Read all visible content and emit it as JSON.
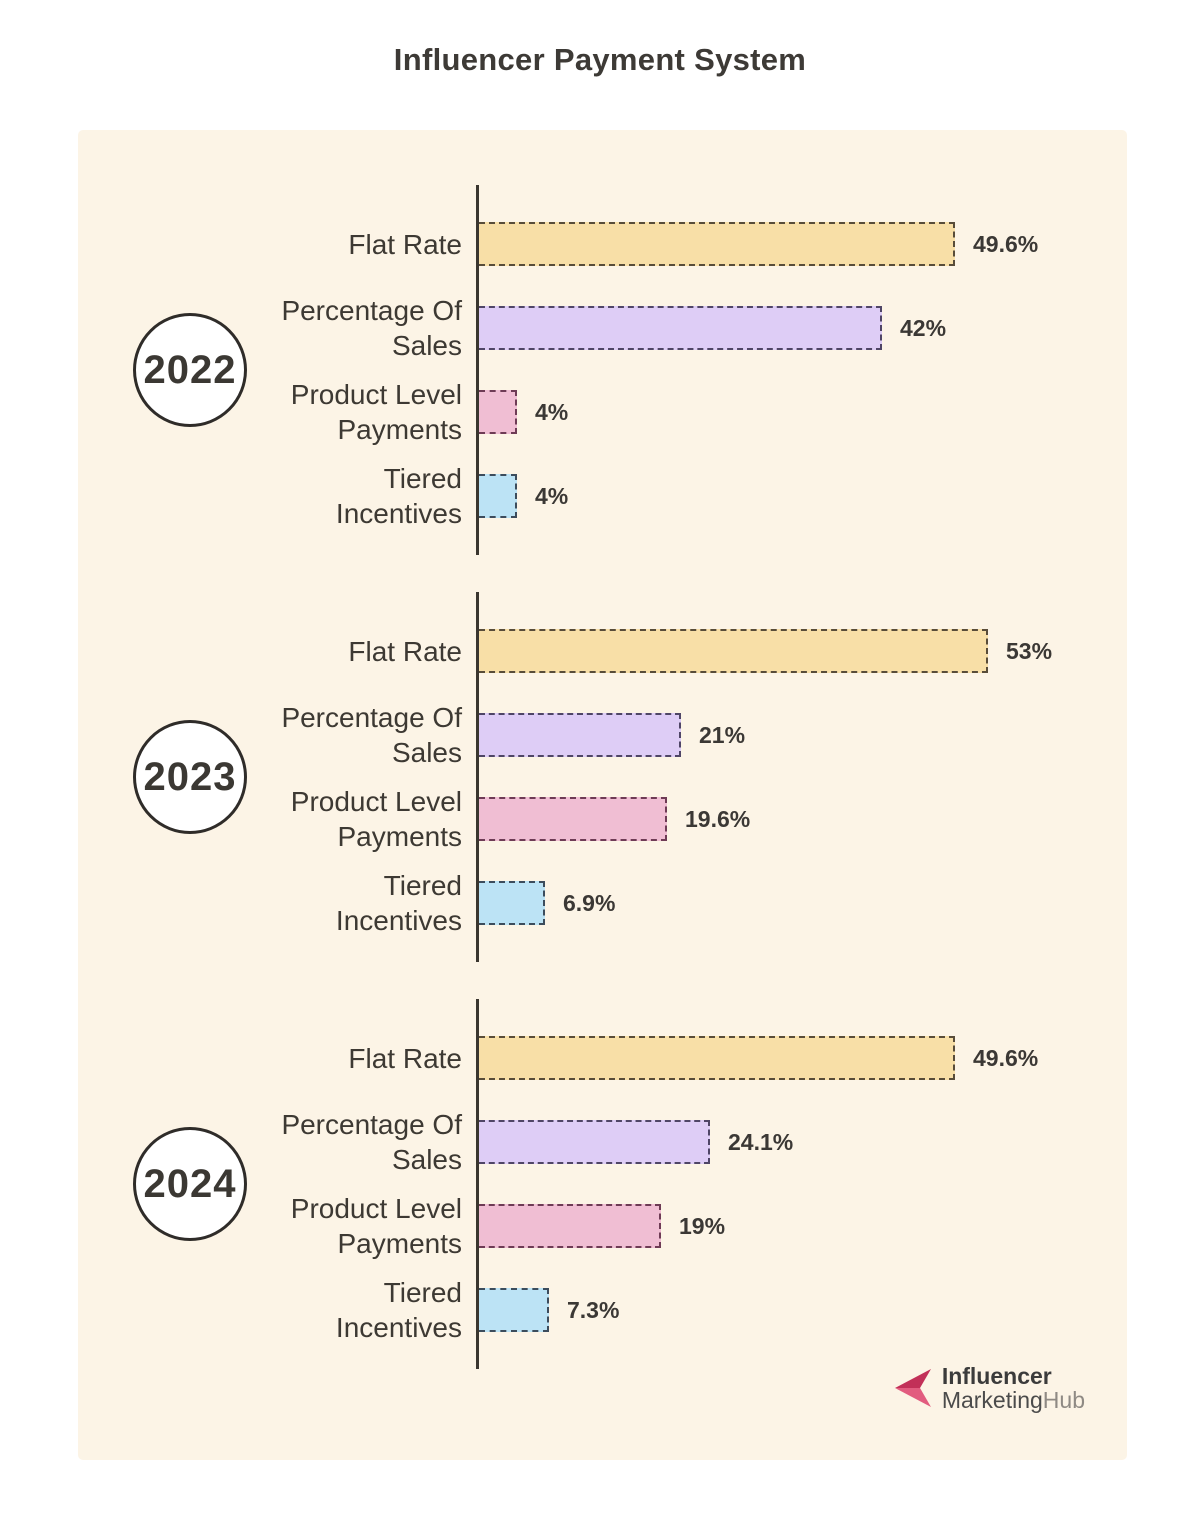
{
  "title": "Influencer Payment System",
  "panel_background": "#FCF4E6",
  "chart_data": {
    "type": "bar",
    "orientation": "horizontal",
    "title": "Influencer Payment System",
    "unit": "%",
    "xlim": [
      0,
      55
    ],
    "grid": false,
    "legend": "none",
    "value_labels": "right of each bar",
    "categories": [
      "Flat Rate",
      "Percentage Of Sales",
      "Product Level Payments",
      "Tiered Incentives"
    ],
    "category_lines": [
      "Flat Rate",
      "Percentage Of\nSales",
      "Product Level\nPayments",
      "Tiered\nIncentives"
    ],
    "series_styles": [
      {
        "name": "Flat Rate",
        "fill": "#F8DFA7",
        "border": "#584C39"
      },
      {
        "name": "Percentage Of Sales",
        "fill": "#DECDF6",
        "border": "#4F4566"
      },
      {
        "name": "Product Level Payments",
        "fill": "#F0BED3",
        "border": "#6E3B55"
      },
      {
        "name": "Tiered Incentives",
        "fill": "#BCE3F5",
        "border": "#3C4C5C"
      }
    ],
    "groups": [
      {
        "year": "2022",
        "values": [
          49.6,
          42,
          4,
          4
        ],
        "value_labels": [
          "49.6%",
          "42%",
          "4%",
          "4%"
        ]
      },
      {
        "year": "2023",
        "values": [
          53,
          21,
          19.6,
          6.9
        ],
        "value_labels": [
          "53%",
          "21%",
          "19.6%",
          "6.9%"
        ]
      },
      {
        "year": "2024",
        "values": [
          49.6,
          24.1,
          19,
          7.3
        ],
        "value_labels": [
          "49.6%",
          "24.1%",
          "19%",
          "7.3%"
        ]
      }
    ]
  },
  "logo": {
    "line1": "Influencer",
    "line2_dark": "Marketing",
    "line2_light": "Hub",
    "arrow_dark": "#C23058",
    "arrow_light": "#E25C7F"
  }
}
